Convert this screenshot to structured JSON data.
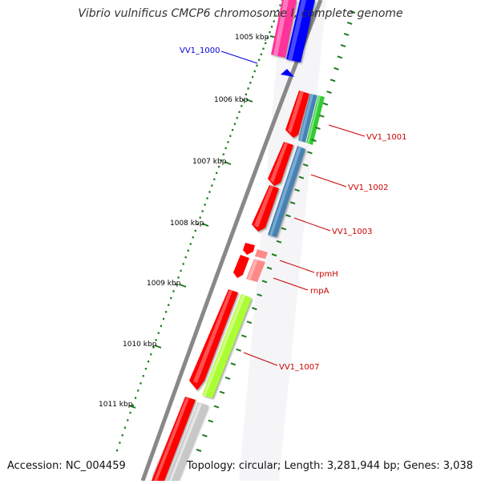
{
  "title": "Vibrio vulnificus CMCP6 chromosome I, complete genome",
  "footer": {
    "accession": "Accession: NC_004459",
    "summary": "Topology: circular; Length: 3,281,944 bp; Genes: 3,038"
  },
  "ruler": {
    "labels": [
      "1005 kbp",
      "1006 kbp",
      "1007 kbp",
      "1008 kbp",
      "1009 kbp",
      "1010 kbp",
      "1011 kbp"
    ],
    "color": "#1f7a1f"
  },
  "genes": [
    {
      "label": "VV1_1000",
      "color": "#0000dd"
    },
    {
      "label": "VV1_1001",
      "color": "#cc0000"
    },
    {
      "label": "VV1_1002",
      "color": "#cc0000"
    },
    {
      "label": "VV1_1003",
      "color": "#cc0000"
    },
    {
      "label": "rpmH",
      "color": "#cc0000"
    },
    {
      "label": "rnpA",
      "color": "#cc0000"
    },
    {
      "label": "VV1_1007",
      "color": "#cc0000"
    }
  ],
  "feature_colors": {
    "cds": "#ff0000",
    "trna": "#ff3399",
    "blue": "#0000ff",
    "steel": "#4682b4",
    "green": "#33cc33",
    "lime": "#aaff33",
    "pink": "#ff8888",
    "gray": "#c8c8c8",
    "backbone": "#888888"
  }
}
